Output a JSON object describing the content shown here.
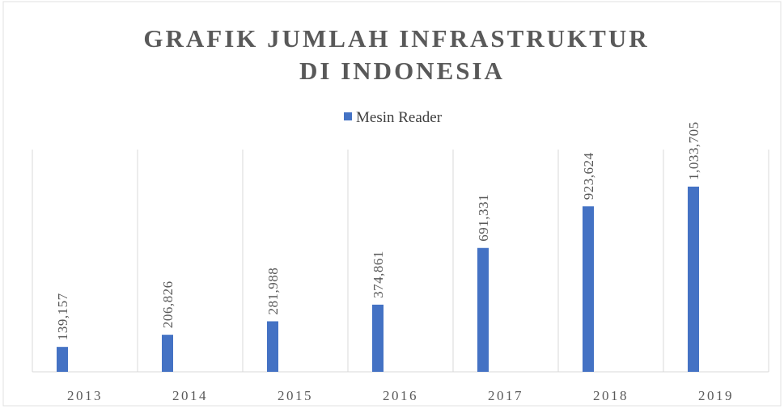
{
  "chart_data": {
    "type": "bar",
    "title": [
      "GRAFIK JUMLAH INFRASTRUKTUR",
      "DI INDONESIA"
    ],
    "categories": [
      "2013",
      "2014",
      "2015",
      "2016",
      "2017",
      "2018",
      "2019"
    ],
    "series": [
      {
        "name": "Mesin Reader",
        "color": "#4472c4",
        "values": [
          139157,
          206826,
          281988,
          374861,
          691331,
          923624,
          1033705
        ],
        "value_labels": [
          "139,157",
          "206,826",
          "281,988",
          "374,861",
          "691,331",
          "923,624",
          "1,033,705"
        ]
      }
    ],
    "ylim": [
      0,
      1200000
    ],
    "grid": true,
    "legend": "top"
  }
}
